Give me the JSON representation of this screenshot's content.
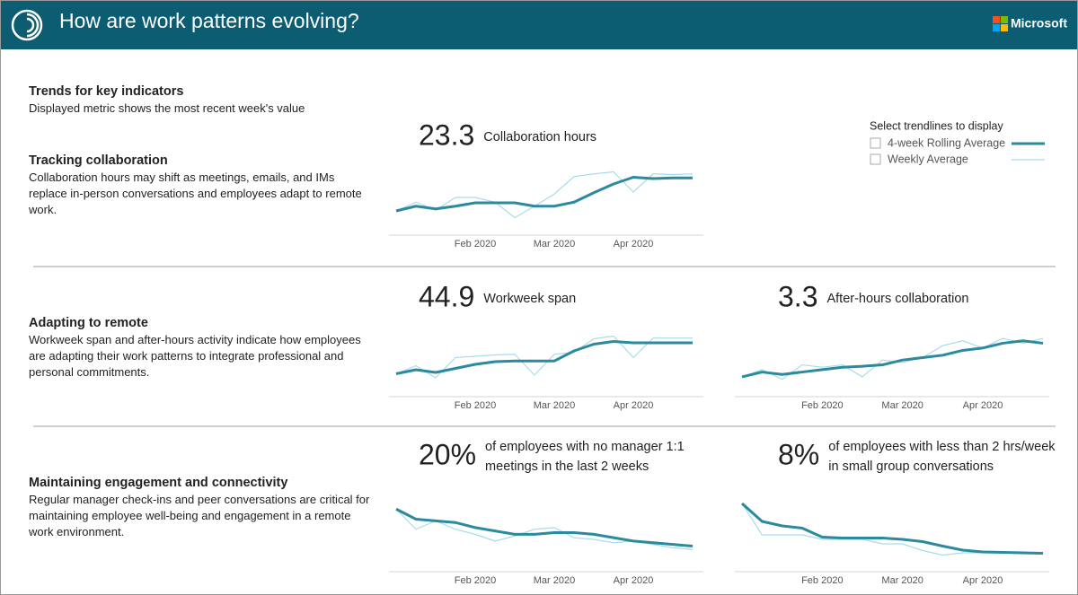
{
  "header": {
    "title": "How are work patterns evolving?",
    "brand": "Microsoft"
  },
  "intro": {
    "title": "Trends for key indicators",
    "subtitle": "Displayed metric shows the most recent week's value"
  },
  "legend_title": "Select trendlines to display",
  "sections": [
    {
      "title": "Tracking collaboration",
      "text": "Collaboration hours may shift as meetings, emails, and IMs replace in-person conversations and employees adapt to remote work."
    },
    {
      "title": "Adapting to remote",
      "text": "Workweek span and after-hours activity indicate how employees are adapting their work patterns to integrate professional and personal commitments."
    },
    {
      "title": "Maintaining engagement and connectivity",
      "text": "Regular manager check-ins and peer conversations are critical for maintaining employee well-being and engagement in a remote work environment."
    }
  ],
  "chart_data": [
    {
      "type": "line",
      "headline": 23.3,
      "metric": [
        "Collaboration hours"
      ],
      "categories": [
        null,
        null,
        null,
        null,
        "Feb 2020",
        null,
        null,
        null,
        "Mar 2020",
        null,
        null,
        null,
        "Apr 2020",
        null,
        null,
        null
      ],
      "ylim": [
        15,
        25
      ],
      "series": [
        {
          "name": "4-week Rolling Average",
          "color": "#2b8a9e",
          "values": [
            17.8,
            18.5,
            18.1,
            18.5,
            19.0,
            19.0,
            19.0,
            18.5,
            18.5,
            19.1,
            20.5,
            21.8,
            22.8,
            22.6,
            22.7,
            22.7
          ]
        },
        {
          "name": "Weekly Average",
          "color": "#a8dcea",
          "values": [
            17.8,
            19.1,
            17.9,
            19.8,
            19.8,
            19.1,
            16.8,
            18.5,
            20.3,
            22.9,
            23.3,
            23.6,
            20.6,
            23.3,
            23.2,
            23.3
          ]
        }
      ]
    },
    {
      "type": "line",
      "headline": 44.9,
      "metric": [
        "Workweek span"
      ],
      "categories": [
        null,
        null,
        null,
        null,
        "Feb 2020",
        null,
        null,
        null,
        "Mar 2020",
        null,
        null,
        null,
        "Apr 2020",
        null,
        null,
        null
      ],
      "ylim": [
        37,
        47
      ],
      "series": [
        {
          "name": "4-week Rolling Average",
          "color": "#2b8a9e",
          "values": [
            39.6,
            40.2,
            39.8,
            40.4,
            41.0,
            41.4,
            41.5,
            41.5,
            41.5,
            43.0,
            44.0,
            44.4,
            44.2,
            44.2,
            44.2,
            44.2
          ]
        },
        {
          "name": "Weekly Average",
          "color": "#a8dcea",
          "values": [
            39.6,
            40.8,
            39.0,
            42.0,
            42.2,
            42.4,
            42.5,
            39.4,
            42.5,
            42.8,
            44.8,
            45.2,
            42.0,
            44.9,
            44.9,
            44.9
          ]
        }
      ]
    },
    {
      "type": "line",
      "headline": 3.3,
      "metric": [
        "After-hours collaboration"
      ],
      "categories": [
        null,
        null,
        null,
        null,
        "Feb 2020",
        null,
        null,
        null,
        "Mar 2020",
        null,
        null,
        null,
        "Apr 2020",
        null,
        null,
        null
      ],
      "ylim": [
        2.2,
        3.6
      ],
      "series": [
        {
          "name": "4-week Rolling Average",
          "color": "#2b8a9e",
          "values": [
            2.5,
            2.6,
            2.55,
            2.6,
            2.65,
            2.7,
            2.72,
            2.75,
            2.85,
            2.9,
            2.95,
            3.05,
            3.1,
            3.2,
            3.25,
            3.2
          ]
        },
        {
          "name": "Weekly Average",
          "color": "#a8dcea",
          "values": [
            2.5,
            2.65,
            2.45,
            2.75,
            2.7,
            2.75,
            2.5,
            2.85,
            2.8,
            2.9,
            3.15,
            3.25,
            3.1,
            3.3,
            3.2,
            3.3
          ]
        }
      ]
    },
    {
      "type": "line",
      "headline": {
        "value": 20,
        "label": "20%"
      },
      "metric": [
        "of employees with no manager 1:1",
        "meetings in the last 2 weeks"
      ],
      "categories": [
        null,
        null,
        null,
        null,
        "Feb 2020",
        null,
        null,
        null,
        "Mar 2020",
        null,
        null,
        null,
        "Apr 2020",
        null,
        null,
        null
      ],
      "ylim": [
        15,
        35
      ],
      "series": [
        {
          "name": "4-week Rolling Average",
          "color": "#2b8a9e",
          "values": [
            32,
            29,
            28.5,
            28,
            26.5,
            25.5,
            24.5,
            24.5,
            25,
            25,
            24.5,
            23.5,
            22.5,
            22,
            21.5,
            21
          ]
        },
        {
          "name": "Weekly Average",
          "color": "#a8dcea",
          "values": [
            32,
            26,
            28.5,
            26,
            24.5,
            22.5,
            24,
            26,
            26.5,
            23.5,
            23,
            22,
            22.5,
            21.5,
            20.5,
            20
          ]
        }
      ]
    },
    {
      "type": "line",
      "headline": {
        "value": 8,
        "label": "8%"
      },
      "metric": [
        "of employees with less than 2 hrs/week",
        "in small group conversations"
      ],
      "categories": [
        null,
        null,
        null,
        null,
        "Feb 2020",
        null,
        null,
        null,
        "Mar 2020",
        null,
        null,
        null,
        "Apr 2020",
        null,
        null,
        null
      ],
      "ylim": [
        5,
        20
      ],
      "series": [
        {
          "name": "4-week Rolling Average",
          "color": "#2b8a9e",
          "values": [
            19,
            15,
            14,
            13.5,
            11.5,
            11.3,
            11.3,
            11.3,
            11,
            10.5,
            9.5,
            8.6,
            8.2,
            8.1,
            8,
            7.9
          ]
        },
        {
          "name": "Weekly Average",
          "color": "#a8dcea",
          "values": [
            19,
            12,
            12,
            12,
            11,
            11,
            11,
            10,
            10,
            8.5,
            7.5,
            8,
            8,
            8,
            8,
            8
          ]
        }
      ]
    }
  ]
}
